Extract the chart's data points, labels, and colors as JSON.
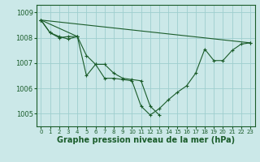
{
  "background_color": "#cbe8e8",
  "grid_color": "#9ecece",
  "line_color": "#1a5c2a",
  "marker_color": "#1a5c2a",
  "xlabel": "Graphe pression niveau de la mer (hPa)",
  "xlabel_fontsize": 7,
  "ylim": [
    1004.5,
    1009.3
  ],
  "xlim": [
    -0.5,
    23.5
  ],
  "yticks": [
    1005,
    1006,
    1007,
    1008,
    1009
  ],
  "xticks": [
    0,
    1,
    2,
    3,
    4,
    5,
    6,
    7,
    8,
    9,
    10,
    11,
    12,
    13,
    14,
    15,
    16,
    17,
    18,
    19,
    20,
    21,
    22,
    23
  ],
  "series": [
    {
      "x": [
        0,
        1,
        2,
        3,
        4,
        5,
        6,
        7,
        8,
        9,
        10,
        11,
        12,
        13,
        14,
        15,
        16,
        17,
        18,
        19,
        20,
        21,
        22,
        23
      ],
      "y": [
        1008.7,
        1008.2,
        1008.0,
        1008.05,
        1008.05,
        1006.5,
        1006.95,
        1006.4,
        1006.4,
        1006.35,
        1006.3,
        1005.3,
        1004.95,
        1005.2,
        1005.55,
        1005.85,
        1006.1,
        1006.6,
        1007.55,
        1007.1,
        1007.1,
        1007.5,
        1007.75,
        1007.8
      ]
    },
    {
      "x": [
        0,
        1,
        2,
        3,
        4,
        5,
        6,
        7,
        8,
        9,
        10,
        11,
        12,
        13
      ],
      "y": [
        1008.7,
        1008.2,
        1008.05,
        1007.95,
        1008.05,
        1007.3,
        1006.95,
        1006.95,
        1006.6,
        1006.4,
        1006.35,
        1006.3,
        1005.3,
        1004.95
      ]
    },
    {
      "x": [
        0,
        4
      ],
      "y": [
        1008.7,
        1008.05
      ]
    },
    {
      "x": [
        0,
        23
      ],
      "y": [
        1008.7,
        1007.8
      ]
    }
  ]
}
